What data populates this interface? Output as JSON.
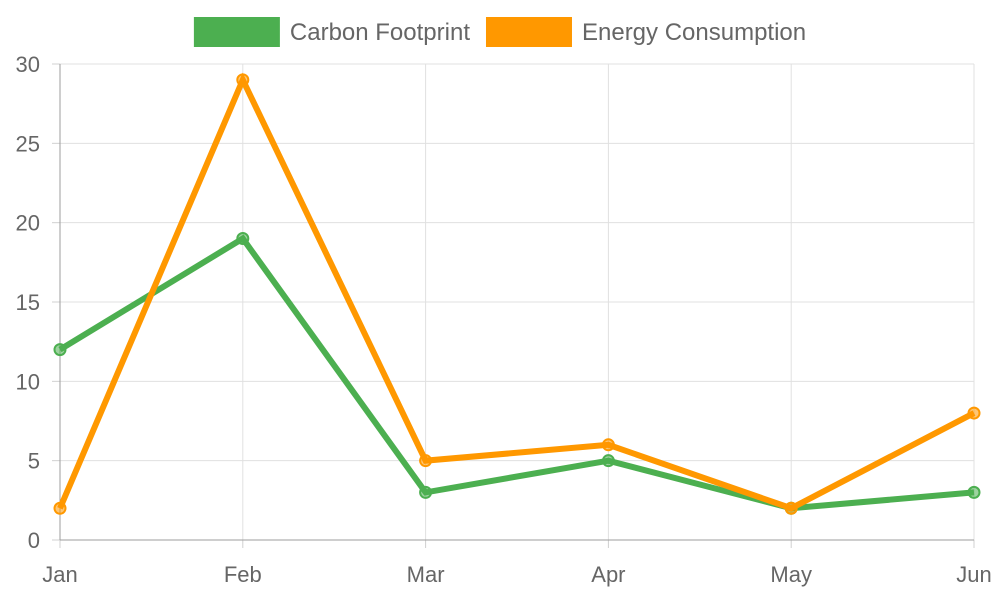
{
  "chart_data": {
    "type": "line",
    "categories": [
      "Jan",
      "Feb",
      "Mar",
      "Apr",
      "May",
      "Jun"
    ],
    "series": [
      {
        "name": "Carbon Footprint",
        "color": "#4caf50",
        "values": [
          12,
          19,
          3,
          5,
          2,
          3
        ]
      },
      {
        "name": "Energy Consumption",
        "color": "#ff9800",
        "values": [
          2,
          29,
          5,
          6,
          2,
          8
        ]
      }
    ],
    "ylim": [
      0,
      30
    ],
    "yticks": [
      0,
      5,
      10,
      15,
      20,
      25,
      30
    ],
    "grid": true,
    "legend_position": "top-center",
    "title": "",
    "xlabel": "",
    "ylabel": ""
  }
}
